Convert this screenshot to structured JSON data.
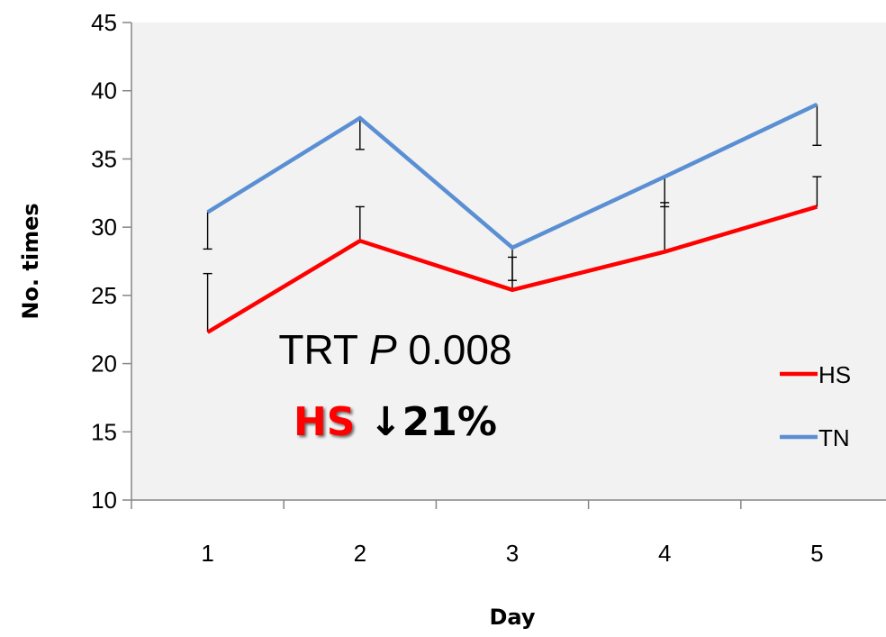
{
  "chart_data": {
    "type": "line",
    "title": "",
    "xlabel": "Day",
    "ylabel": "No. times",
    "categories": [
      "1",
      "2",
      "3",
      "4",
      "5"
    ],
    "ylim": [
      10,
      45
    ],
    "yticks": [
      "10",
      "15",
      "20",
      "25",
      "30",
      "35",
      "40",
      "45"
    ],
    "grid": false,
    "legend_position": "right",
    "series": [
      {
        "name": "HS",
        "color": "#ff0000",
        "values": [
          22.3,
          29.0,
          25.4,
          28.2,
          31.5
        ],
        "error": [
          4.3,
          2.5,
          2.4,
          3.6,
          2.2
        ],
        "error_direction": "up"
      },
      {
        "name": "TN",
        "color": "#5b8fd4",
        "values": [
          31.1,
          38.0,
          28.5,
          33.7,
          39.0
        ],
        "error": [
          2.7,
          2.3,
          2.4,
          2.2,
          3.0
        ],
        "error_direction": "down"
      }
    ],
    "annotations": {
      "line1_prefix": "TRT ",
      "line1_italic": "P",
      "line1_suffix": " 0.008",
      "line2_highlight": "HS",
      "line2_rest": " ↓21%",
      "highlight_color": "#ff0000"
    },
    "plot_background": "#f2f2f2"
  }
}
